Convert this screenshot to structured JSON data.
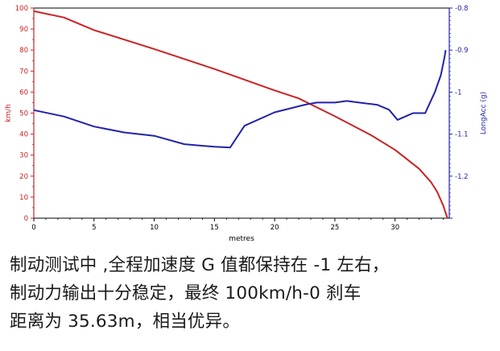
{
  "chart_data": {
    "type": "line",
    "xlabel": "metres",
    "ylabel_left": "km/h",
    "ylabel_right": "LongAcc (g)",
    "xlim": [
      0,
      34.5
    ],
    "ylim_left": [
      0,
      100
    ],
    "ylim_right": [
      -1.3,
      -0.8
    ],
    "x_ticks": [
      0,
      5,
      10,
      15,
      20,
      25,
      30
    ],
    "y_left_ticks": [
      0,
      10,
      20,
      30,
      40,
      50,
      60,
      70,
      80,
      90,
      100
    ],
    "y_right_ticks": [
      -1.3,
      -1.2,
      -1.1,
      -1.0,
      -0.9,
      -0.8
    ],
    "y_right_tick_labels": [
      "",
      "-1.2",
      "-1.1",
      "-1",
      "-0.9",
      "-0.8"
    ],
    "grid": false,
    "series": [
      {
        "axis": "left",
        "color": "#cc2222",
        "points": [
          [
            0,
            98.5
          ],
          [
            2.5,
            95.5
          ],
          [
            5,
            89.5
          ],
          [
            10,
            80.5
          ],
          [
            15,
            71
          ],
          [
            20,
            60.8
          ],
          [
            22,
            57
          ],
          [
            25,
            48.5
          ],
          [
            28,
            39.5
          ],
          [
            30,
            32.5
          ],
          [
            32,
            23.5
          ],
          [
            33,
            17
          ],
          [
            33.5,
            12.5
          ],
          [
            34,
            6
          ],
          [
            34.2,
            2.5
          ],
          [
            34.35,
            0
          ]
        ]
      },
      {
        "axis": "right",
        "color": "#2222aa",
        "points": [
          [
            0,
            -1.043
          ],
          [
            2.5,
            -1.058
          ],
          [
            5,
            -1.082
          ],
          [
            7.5,
            -1.096
          ],
          [
            10,
            -1.104
          ],
          [
            12.5,
            -1.124
          ],
          [
            15,
            -1.13
          ],
          [
            16.3,
            -1.132
          ],
          [
            17.5,
            -1.08
          ],
          [
            20,
            -1.048
          ],
          [
            22.5,
            -1.03
          ],
          [
            23.5,
            -1.025
          ],
          [
            25,
            -1.025
          ],
          [
            26,
            -1.021
          ],
          [
            27,
            -1.025
          ],
          [
            28.5,
            -1.03
          ],
          [
            29.5,
            -1.042
          ],
          [
            30.2,
            -1.066
          ],
          [
            31.5,
            -1.05
          ],
          [
            32.5,
            -1.05
          ],
          [
            33.3,
            -1.0
          ],
          [
            33.8,
            -0.96
          ],
          [
            34.1,
            -0.918
          ],
          [
            34.2,
            -0.9
          ]
        ]
      }
    ]
  },
  "caption": {
    "line1": "制动测试中 ,全程加速度 G 值都保持在 -1 左右，",
    "line2": "制动力输出十分稳定，最终 100km/h-0 刹车",
    "line3": "距离为 35.63m，相当优异。"
  }
}
